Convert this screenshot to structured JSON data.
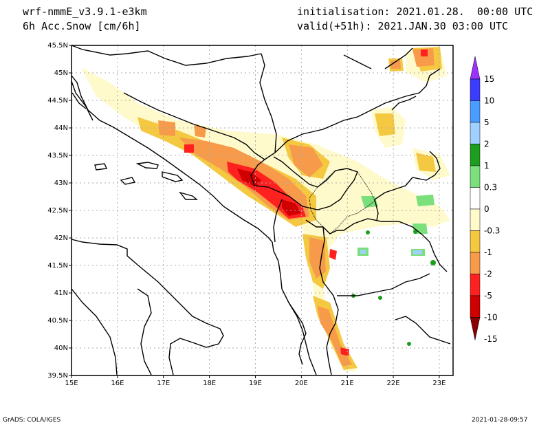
{
  "header": {
    "model": "wrf-nmmE_v3.9.1-e3km",
    "field": "6h Acc.Snow [cm/6h]",
    "init": "initialisation: 2021.01.28.  00:00 UTC",
    "valid": "valid(+51h): 2021.JAN.30 03:00 UTC"
  },
  "axes": {
    "lat_labels": [
      "45.5N",
      "45N",
      "44.5N",
      "44N",
      "43.5N",
      "43N",
      "42.5N",
      "42N",
      "41.5N",
      "41N",
      "40.5N",
      "40N",
      "39.5N"
    ],
    "lon_labels": [
      "15E",
      "16E",
      "17E",
      "18E",
      "19E",
      "20E",
      "21E",
      "22E",
      "23E"
    ],
    "lat_range": [
      39.5,
      45.5
    ],
    "lon_range": [
      15,
      23.3
    ]
  },
  "colorbar": {
    "labels": [
      "15",
      "10",
      "5",
      "2",
      "1",
      "0.3",
      "0",
      "-0.3",
      "-1",
      "-2",
      "-5",
      "-10",
      "-15"
    ],
    "colors": [
      "#9b30ff",
      "#3c3cff",
      "#4a9cff",
      "#a0d0ff",
      "#1e9e1e",
      "#7be07b",
      "#ffffff",
      "#fffacc",
      "#f5c842",
      "#f79a4a",
      "#ff2020",
      "#d00000",
      "#8b0000"
    ]
  },
  "footer": {
    "left": "GrADS: COLA/IGES",
    "right": "2021-01-28-09:57"
  }
}
